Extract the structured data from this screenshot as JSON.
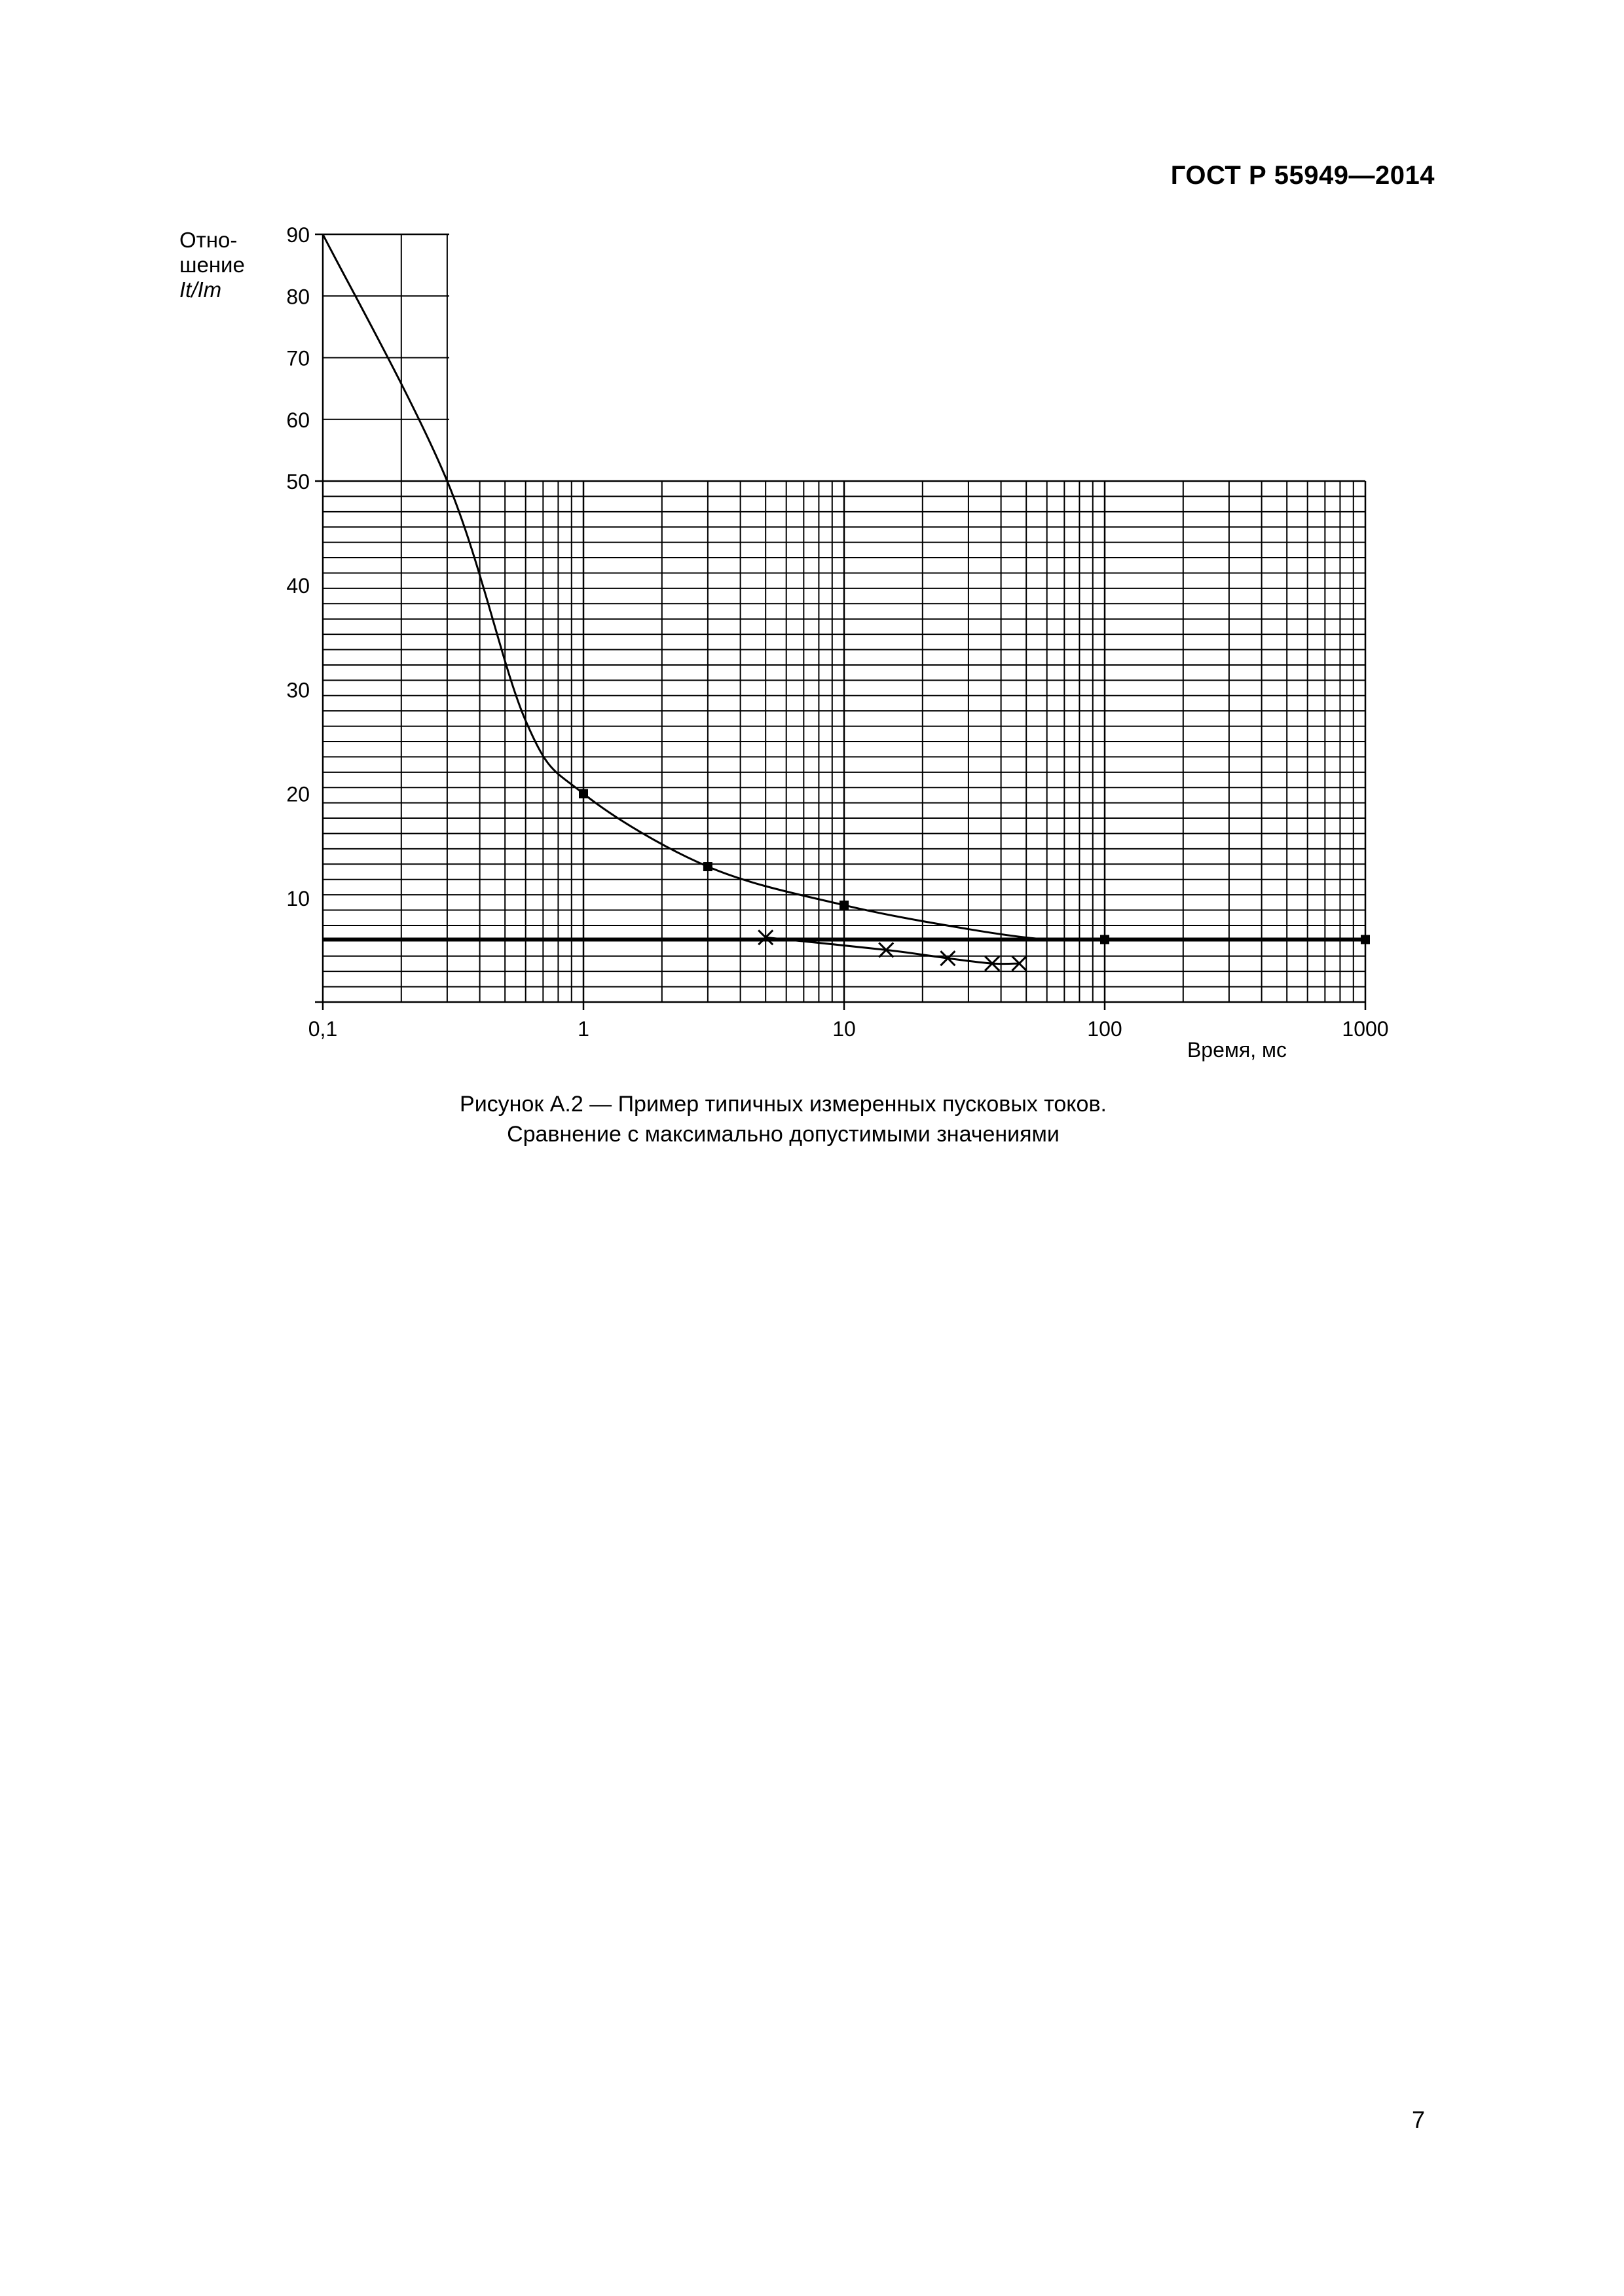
{
  "header": {
    "standard": "ГОСТ Р 55949—2014"
  },
  "chart_data": {
    "type": "line",
    "xscale": "log",
    "xlabel": "Время, мс",
    "ylabel_lines": [
      "Отно-",
      "шение"
    ],
    "ylabel_symbol": "It/Im",
    "xlim": [
      0.1,
      1000
    ],
    "ylim": [
      0,
      90
    ],
    "x_ticks": [
      0.1,
      1,
      10,
      100,
      1000
    ],
    "x_tick_labels": [
      "0,1",
      "1",
      "10",
      "100",
      "1000"
    ],
    "y_ticks": [
      10,
      20,
      30,
      40,
      50,
      60,
      70,
      80,
      90
    ],
    "y_tick_labels": [
      "10",
      "20",
      "30",
      "40",
      "50",
      "60",
      "70",
      "80",
      "90"
    ],
    "series": [
      {
        "marker": "square",
        "points": [
          [
            0.1,
            90
          ],
          [
            0.3,
            50
          ],
          [
            0.6,
            27
          ],
          [
            1,
            20
          ],
          [
            3,
            13
          ],
          [
            10,
            9.3
          ],
          [
            30,
            7
          ],
          [
            60,
            6
          ],
          [
            100,
            6
          ],
          [
            1000,
            6
          ]
        ],
        "marker_points": [
          [
            1,
            20
          ],
          [
            3,
            13
          ],
          [
            10,
            9.3
          ],
          [
            100,
            6
          ],
          [
            1000,
            6
          ]
        ]
      },
      {
        "marker": "x",
        "points": [
          [
            5,
            6.2
          ],
          [
            14.5,
            5
          ],
          [
            25,
            4.2
          ],
          [
            37,
            3.7
          ],
          [
            47,
            3.7
          ]
        ],
        "marker_points": [
          [
            5,
            6.2
          ],
          [
            14.5,
            5
          ],
          [
            25,
            4.2
          ],
          [
            37,
            3.7
          ],
          [
            47,
            3.7
          ]
        ]
      }
    ],
    "reference_line": {
      "y": 6
    },
    "grid": true
  },
  "caption": {
    "line1": "Рисунок  А.2 — Пример типичных измеренных пусковых токов.",
    "line2": "Сравнение с максимально допустимыми значениями"
  },
  "page_number": "7"
}
